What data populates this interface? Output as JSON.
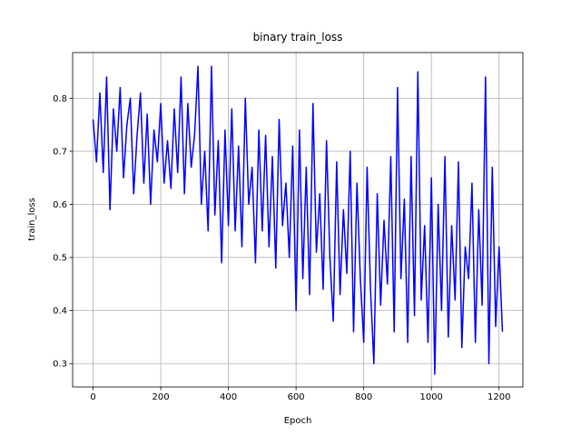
{
  "chart_data": {
    "type": "line",
    "title": "binary train_loss",
    "x_label": "Epoch",
    "y_label": "train_loss",
    "color": "#0000ff",
    "grid": true,
    "xlim": [
      -60.5,
      1270.5
    ],
    "ylim": [
      0.256,
      0.886
    ],
    "xticks": [
      0,
      200,
      400,
      600,
      800,
      1000,
      1200
    ],
    "yticks": [
      0.3,
      0.4,
      0.5,
      0.6,
      0.7,
      0.8
    ],
    "x": [
      0,
      10,
      20,
      30,
      40,
      50,
      60,
      70,
      80,
      90,
      100,
      110,
      120,
      130,
      140,
      150,
      160,
      170,
      180,
      190,
      200,
      210,
      220,
      230,
      240,
      250,
      260,
      270,
      280,
      290,
      300,
      310,
      320,
      330,
      340,
      350,
      360,
      370,
      380,
      390,
      400,
      410,
      420,
      430,
      440,
      450,
      460,
      470,
      480,
      490,
      500,
      510,
      520,
      530,
      540,
      550,
      560,
      570,
      580,
      590,
      600,
      610,
      620,
      630,
      640,
      650,
      660,
      670,
      680,
      690,
      700,
      710,
      720,
      730,
      740,
      750,
      760,
      770,
      780,
      790,
      800,
      810,
      820,
      830,
      840,
      850,
      860,
      870,
      880,
      890,
      900,
      910,
      920,
      930,
      940,
      950,
      960,
      970,
      980,
      990,
      1000,
      1010,
      1020,
      1030,
      1040,
      1050,
      1060,
      1070,
      1080,
      1090,
      1100,
      1110,
      1120,
      1130,
      1140,
      1150,
      1160,
      1170,
      1180,
      1190,
      1200,
      1210
    ],
    "values": [
      0.76,
      0.68,
      0.81,
      0.66,
      0.84,
      0.59,
      0.78,
      0.7,
      0.82,
      0.65,
      0.75,
      0.8,
      0.62,
      0.73,
      0.81,
      0.64,
      0.77,
      0.6,
      0.74,
      0.68,
      0.79,
      0.64,
      0.72,
      0.63,
      0.78,
      0.66,
      0.84,
      0.62,
      0.79,
      0.67,
      0.73,
      0.86,
      0.6,
      0.7,
      0.55,
      0.86,
      0.58,
      0.72,
      0.49,
      0.74,
      0.56,
      0.78,
      0.55,
      0.71,
      0.52,
      0.8,
      0.6,
      0.67,
      0.49,
      0.74,
      0.55,
      0.73,
      0.52,
      0.69,
      0.48,
      0.76,
      0.56,
      0.64,
      0.5,
      0.71,
      0.4,
      0.74,
      0.46,
      0.67,
      0.43,
      0.79,
      0.51,
      0.62,
      0.44,
      0.72,
      0.5,
      0.38,
      0.68,
      0.43,
      0.59,
      0.47,
      0.7,
      0.36,
      0.64,
      0.46,
      0.34,
      0.67,
      0.44,
      0.3,
      0.62,
      0.41,
      0.57,
      0.45,
      0.69,
      0.36,
      0.82,
      0.46,
      0.61,
      0.34,
      0.69,
      0.39,
      0.85,
      0.42,
      0.56,
      0.34,
      0.65,
      0.28,
      0.6,
      0.4,
      0.69,
      0.35,
      0.56,
      0.42,
      0.68,
      0.33,
      0.52,
      0.46,
      0.64,
      0.34,
      0.59,
      0.41,
      0.84,
      0.3,
      0.67,
      0.37,
      0.52,
      0.36
    ]
  }
}
